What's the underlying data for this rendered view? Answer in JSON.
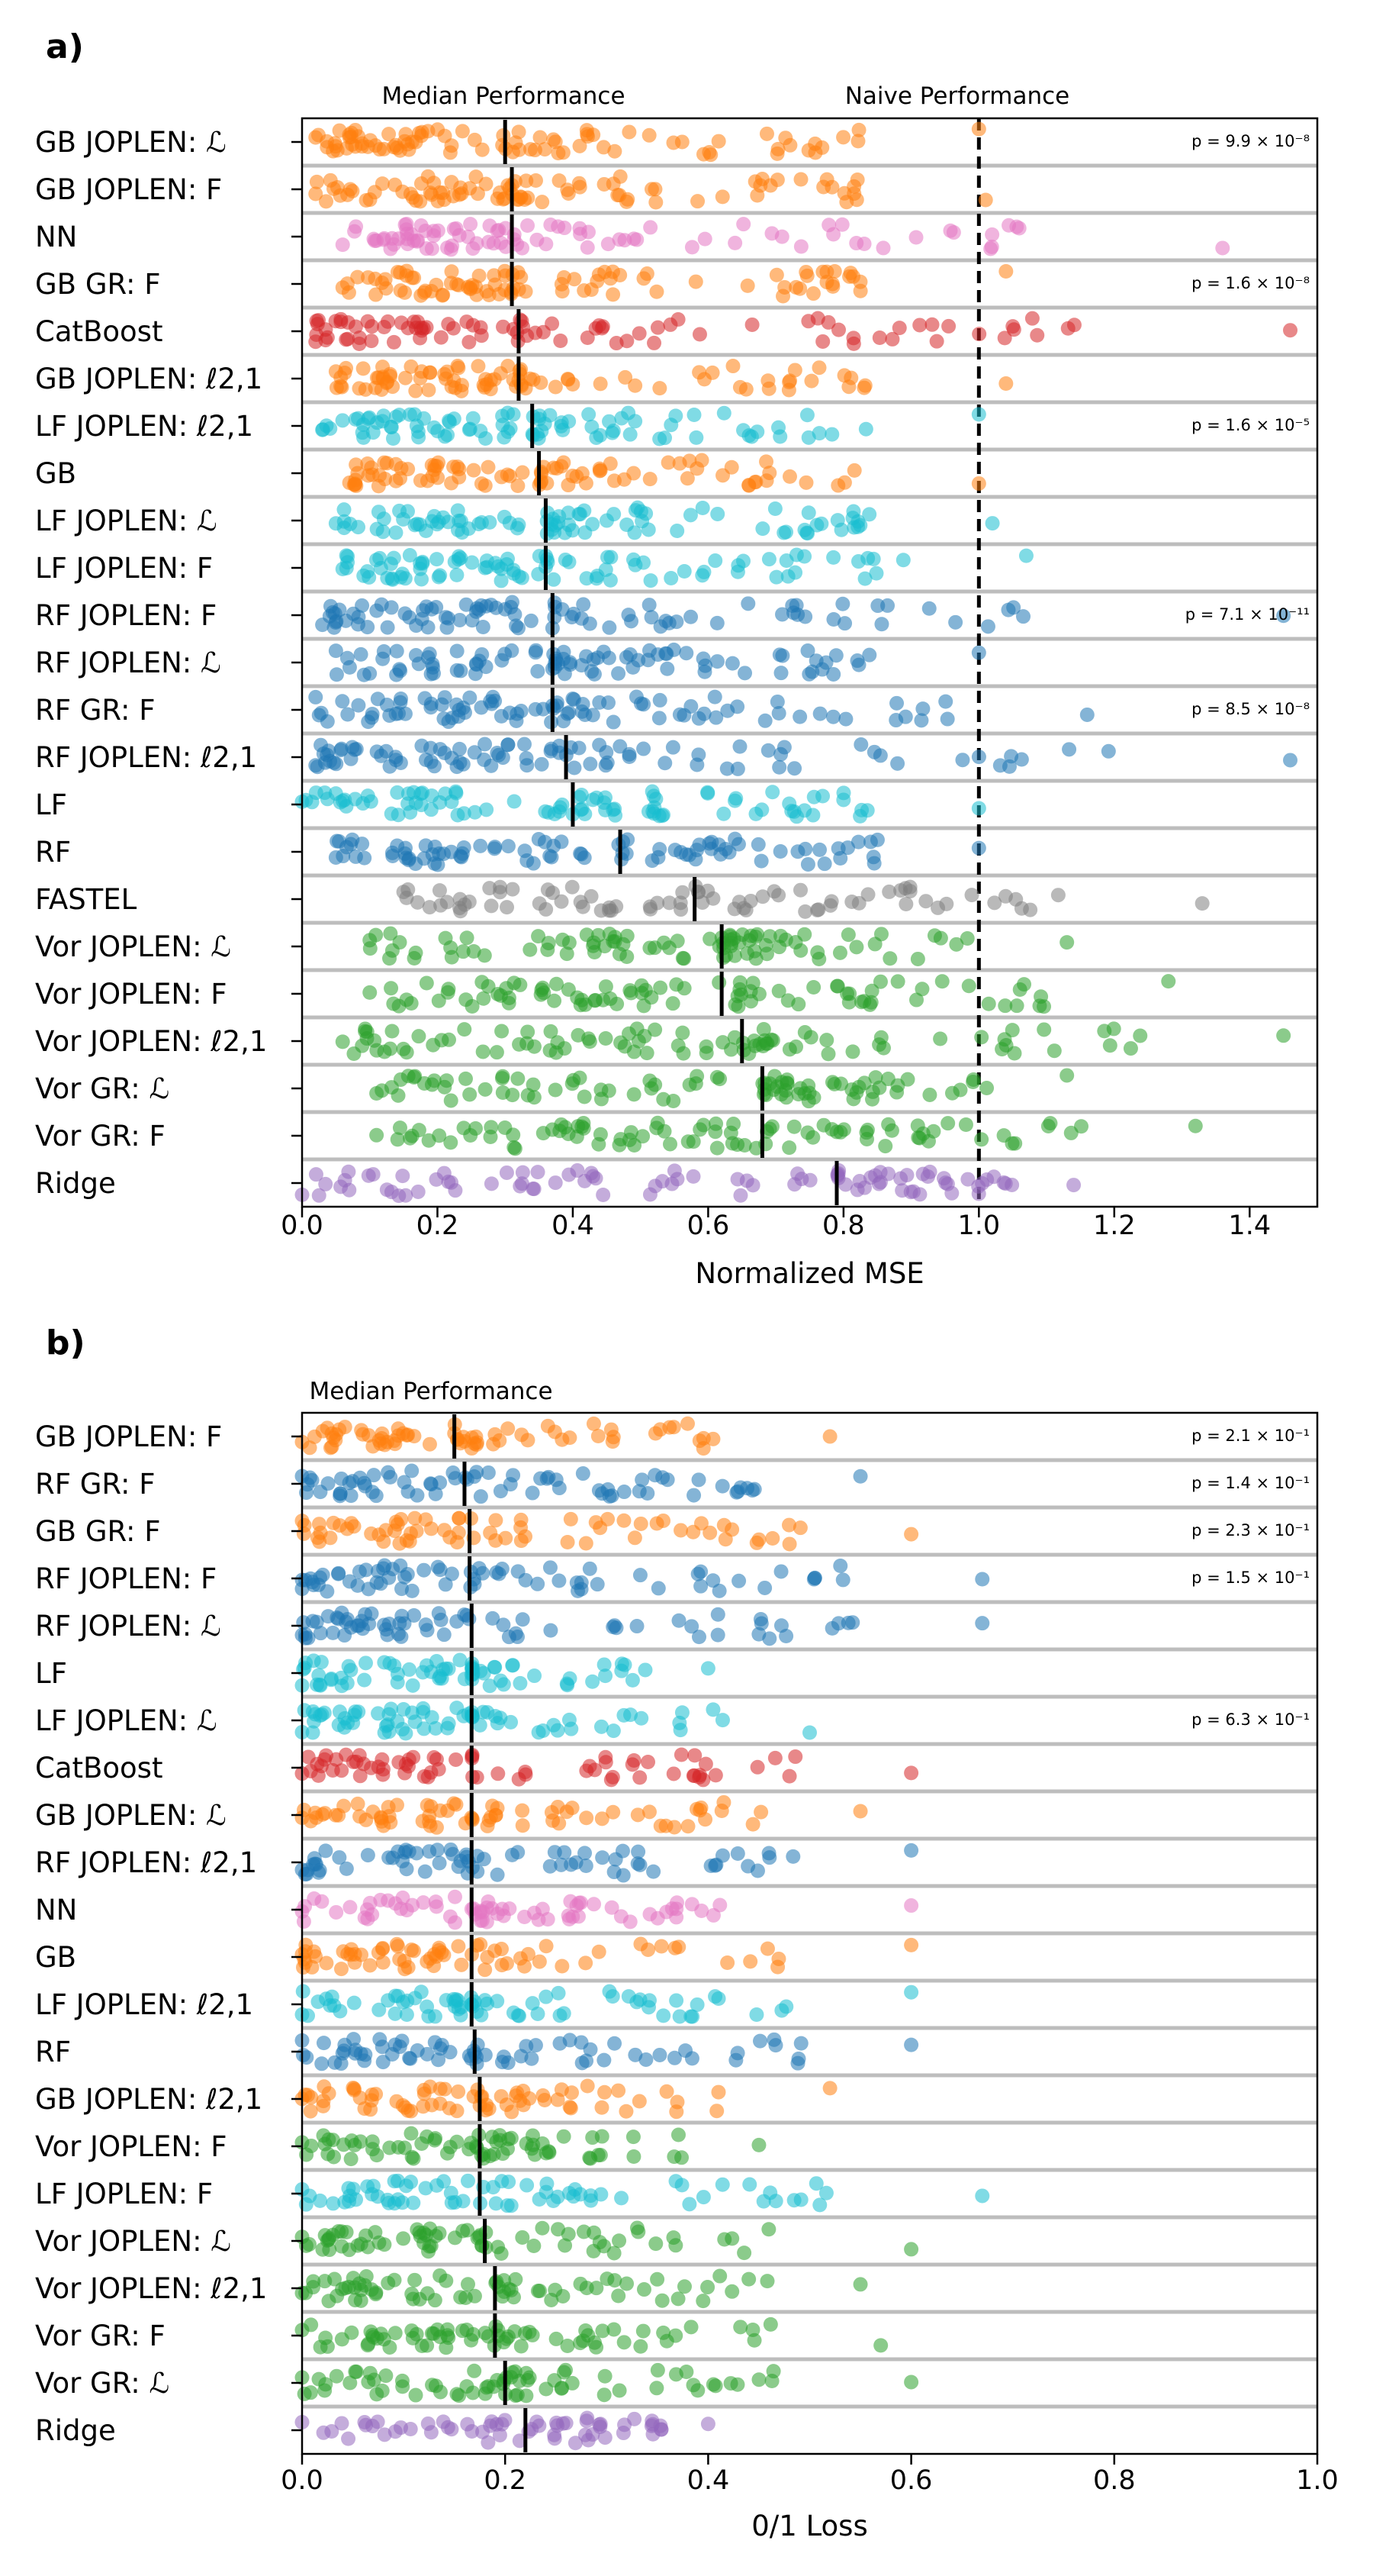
{
  "chart_data": [
    {
      "panel_label": "a)",
      "type": "scatter",
      "xlabel": "Normalized MSE",
      "xlim": [
        0.0,
        1.5
      ],
      "xticks": [
        0.0,
        0.2,
        0.4,
        0.6,
        0.8,
        1.0,
        1.2,
        1.4
      ],
      "xtick_labels": [
        "0.0",
        "0.2",
        "0.4",
        "0.6",
        "0.8",
        "1.0",
        "1.2",
        "1.4"
      ],
      "annotations": {
        "median_label": "Median Performance",
        "naive_label": "Naive Performance",
        "naive_value": 1.0
      },
      "rows": [
        {
          "label": "GB JOPLEN: ℒ",
          "color": "#ff7f0e",
          "median": 0.3,
          "p_value": "p = 9.9 × 10⁻⁸",
          "min": 0.02,
          "max": 1.0,
          "n": 90
        },
        {
          "label": "GB JOPLEN: F",
          "color": "#ff7f0e",
          "median": 0.31,
          "p_value": "",
          "min": 0.02,
          "max": 1.01,
          "n": 90
        },
        {
          "label": "NN",
          "color": "#e377c2",
          "median": 0.31,
          "p_value": "",
          "min": 0.06,
          "max": 1.36,
          "n": 90
        },
        {
          "label": "GB GR: F",
          "color": "#ff7f0e",
          "median": 0.31,
          "p_value": "p = 1.6 × 10⁻⁸",
          "min": 0.06,
          "max": 1.04,
          "n": 90
        },
        {
          "label": "CatBoost",
          "color": "#d62728",
          "median": 0.32,
          "p_value": "",
          "min": 0.02,
          "max": 1.46,
          "n": 90
        },
        {
          "label": "GB JOPLEN: ℓ2,1",
          "color": "#ff7f0e",
          "median": 0.32,
          "p_value": "",
          "min": 0.05,
          "max": 1.04,
          "n": 90
        },
        {
          "label": "LF JOPLEN: ℓ2,1",
          "color": "#17becf",
          "median": 0.34,
          "p_value": "p = 1.6 × 10⁻⁵",
          "min": 0.03,
          "max": 1.0,
          "n": 90
        },
        {
          "label": "GB",
          "color": "#ff7f0e",
          "median": 0.35,
          "p_value": "",
          "min": 0.07,
          "max": 1.0,
          "n": 90
        },
        {
          "label": "LF JOPLEN: ℒ",
          "color": "#17becf",
          "median": 0.36,
          "p_value": "",
          "min": 0.05,
          "max": 1.02,
          "n": 90
        },
        {
          "label": "LF JOPLEN: F",
          "color": "#17becf",
          "median": 0.36,
          "p_value": "",
          "min": 0.06,
          "max": 1.07,
          "n": 90
        },
        {
          "label": "RF JOPLEN: F",
          "color": "#1f77b4",
          "median": 0.37,
          "p_value": "p = 7.1 × 10⁻¹¹",
          "min": 0.03,
          "max": 1.45,
          "n": 90
        },
        {
          "label": "RF JOPLEN: ℒ",
          "color": "#1f77b4",
          "median": 0.37,
          "p_value": "",
          "min": 0.05,
          "max": 1.0,
          "n": 90
        },
        {
          "label": "RF GR: F",
          "color": "#1f77b4",
          "median": 0.37,
          "p_value": "p = 8.5 × 10⁻⁸",
          "min": 0.02,
          "max": 1.16,
          "n": 90
        },
        {
          "label": "RF JOPLEN: ℓ2,1",
          "color": "#1f77b4",
          "median": 0.39,
          "p_value": "",
          "min": 0.02,
          "max": 1.46,
          "n": 90
        },
        {
          "label": "LF",
          "color": "#17becf",
          "median": 0.4,
          "p_value": "",
          "min": 0.0,
          "max": 1.0,
          "n": 90
        },
        {
          "label": "RF",
          "color": "#1f77b4",
          "median": 0.47,
          "p_value": "",
          "min": 0.05,
          "max": 1.0,
          "n": 90
        },
        {
          "label": "FASTEL",
          "color": "#7f7f7f",
          "median": 0.58,
          "p_value": "",
          "min": 0.15,
          "max": 1.33,
          "n": 80
        },
        {
          "label": "Vor JOPLEN: ℒ",
          "color": "#2ca02c",
          "median": 0.62,
          "p_value": "",
          "min": 0.1,
          "max": 1.13,
          "n": 90
        },
        {
          "label": "Vor JOPLEN: F",
          "color": "#2ca02c",
          "median": 0.62,
          "p_value": "",
          "min": 0.1,
          "max": 1.28,
          "n": 90
        },
        {
          "label": "Vor JOPLEN: ℓ2,1",
          "color": "#2ca02c",
          "median": 0.65,
          "p_value": "",
          "min": 0.06,
          "max": 1.45,
          "n": 90
        },
        {
          "label": "Vor GR: ℒ",
          "color": "#2ca02c",
          "median": 0.68,
          "p_value": "",
          "min": 0.11,
          "max": 1.13,
          "n": 90
        },
        {
          "label": "Vor GR: F",
          "color": "#2ca02c",
          "median": 0.68,
          "p_value": "",
          "min": 0.11,
          "max": 1.32,
          "n": 90
        },
        {
          "label": "Ridge",
          "color": "#9467bd",
          "median": 0.79,
          "p_value": "",
          "min": 0.0,
          "max": 1.14,
          "n": 90
        }
      ]
    },
    {
      "panel_label": "b)",
      "type": "scatter",
      "xlabel": "0/1 Loss",
      "xlim": [
        0.0,
        1.0
      ],
      "xticks": [
        0.0,
        0.2,
        0.4,
        0.6,
        0.8,
        1.0
      ],
      "xtick_labels": [
        "0.0",
        "0.2",
        "0.4",
        "0.6",
        "0.8",
        "1.0"
      ],
      "annotations": {
        "median_label": "Median Performance"
      },
      "rows": [
        {
          "label": "GB JOPLEN: F",
          "color": "#ff7f0e",
          "median": 0.15,
          "p_value": "p = 2.1 × 10⁻¹",
          "min": 0.0,
          "max": 0.52,
          "n": 70
        },
        {
          "label": "RF GR: F",
          "color": "#1f77b4",
          "median": 0.16,
          "p_value": "p = 1.4 × 10⁻¹",
          "min": 0.0,
          "max": 0.55,
          "n": 70
        },
        {
          "label": "GB GR: F",
          "color": "#ff7f0e",
          "median": 0.165,
          "p_value": "p = 2.3 × 10⁻¹",
          "min": 0.0,
          "max": 0.6,
          "n": 70
        },
        {
          "label": "RF JOPLEN: F",
          "color": "#1f77b4",
          "median": 0.165,
          "p_value": "p = 1.5 × 10⁻¹",
          "min": 0.0,
          "max": 0.67,
          "n": 70
        },
        {
          "label": "RF JOPLEN: ℒ",
          "color": "#1f77b4",
          "median": 0.167,
          "p_value": "",
          "min": 0.0,
          "max": 0.67,
          "n": 70
        },
        {
          "label": "LF",
          "color": "#17becf",
          "median": 0.167,
          "p_value": "",
          "min": 0.0,
          "max": 0.4,
          "n": 70
        },
        {
          "label": "LF JOPLEN: ℒ",
          "color": "#17becf",
          "median": 0.167,
          "p_value": "p = 6.3 × 10⁻¹",
          "min": 0.0,
          "max": 0.5,
          "n": 70
        },
        {
          "label": "CatBoost",
          "color": "#d62728",
          "median": 0.167,
          "p_value": "",
          "min": 0.0,
          "max": 0.6,
          "n": 70
        },
        {
          "label": "GB JOPLEN: ℒ",
          "color": "#ff7f0e",
          "median": 0.167,
          "p_value": "",
          "min": 0.0,
          "max": 0.55,
          "n": 70
        },
        {
          "label": "RF JOPLEN: ℓ2,1",
          "color": "#1f77b4",
          "median": 0.167,
          "p_value": "",
          "min": 0.0,
          "max": 0.6,
          "n": 70
        },
        {
          "label": "NN",
          "color": "#e377c2",
          "median": 0.167,
          "p_value": "",
          "min": 0.0,
          "max": 0.6,
          "n": 70
        },
        {
          "label": "GB",
          "color": "#ff7f0e",
          "median": 0.167,
          "p_value": "",
          "min": 0.0,
          "max": 0.6,
          "n": 70
        },
        {
          "label": "LF JOPLEN: ℓ2,1",
          "color": "#17becf",
          "median": 0.167,
          "p_value": "",
          "min": 0.0,
          "max": 0.6,
          "n": 70
        },
        {
          "label": "RF",
          "color": "#1f77b4",
          "median": 0.17,
          "p_value": "",
          "min": 0.0,
          "max": 0.6,
          "n": 70
        },
        {
          "label": "GB JOPLEN: ℓ2,1",
          "color": "#ff7f0e",
          "median": 0.175,
          "p_value": "",
          "min": 0.0,
          "max": 0.52,
          "n": 70
        },
        {
          "label": "Vor JOPLEN: F",
          "color": "#2ca02c",
          "median": 0.175,
          "p_value": "",
          "min": 0.0,
          "max": 0.45,
          "n": 70
        },
        {
          "label": "LF JOPLEN: F",
          "color": "#17becf",
          "median": 0.175,
          "p_value": "",
          "min": 0.0,
          "max": 0.67,
          "n": 70
        },
        {
          "label": "Vor JOPLEN: ℒ",
          "color": "#2ca02c",
          "median": 0.18,
          "p_value": "",
          "min": 0.0,
          "max": 0.6,
          "n": 70
        },
        {
          "label": "Vor JOPLEN: ℓ2,1",
          "color": "#2ca02c",
          "median": 0.19,
          "p_value": "",
          "min": 0.0,
          "max": 0.55,
          "n": 70
        },
        {
          "label": "Vor GR: F",
          "color": "#2ca02c",
          "median": 0.19,
          "p_value": "",
          "min": 0.0,
          "max": 0.57,
          "n": 70
        },
        {
          "label": "Vor GR: ℒ",
          "color": "#2ca02c",
          "median": 0.2,
          "p_value": "",
          "min": 0.0,
          "max": 0.6,
          "n": 70
        },
        {
          "label": "Ridge",
          "color": "#9467bd",
          "median": 0.22,
          "p_value": "",
          "min": 0.0,
          "max": 0.4,
          "n": 60
        }
      ]
    }
  ]
}
